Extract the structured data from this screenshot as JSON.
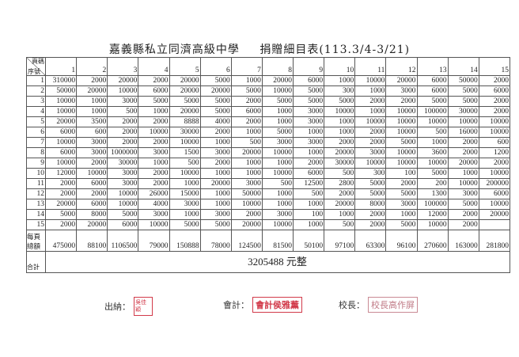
{
  "header": {
    "school": "嘉義縣私立同濟高級中學",
    "title": "捐贈細目表(113.3/4-3/21)"
  },
  "table": {
    "corner_top": "頁碼",
    "corner_bottom": "序號",
    "columns": [
      "1",
      "2",
      "3",
      "4",
      "5",
      "6",
      "7",
      "8",
      "9",
      "10",
      "11",
      "12",
      "13",
      "14",
      "15"
    ],
    "rows": [
      {
        "no": "1",
        "values": [
          "310000",
          "2000",
          "20000",
          "2000",
          "20000",
          "5000",
          "1000",
          "20000",
          "6000",
          "1000",
          "10000",
          "20000",
          "6000",
          "50000",
          "2000"
        ]
      },
      {
        "no": "2",
        "values": [
          "50000",
          "20000",
          "10000",
          "6000",
          "20000",
          "20000",
          "5000",
          "10000",
          "5000",
          "300",
          "1000",
          "3000",
          "6000",
          "5000",
          "6000"
        ]
      },
      {
        "no": "3",
        "values": [
          "10000",
          "1000",
          "3000",
          "5000",
          "5000",
          "5000",
          "2000",
          "5000",
          "5000",
          "5000",
          "2000",
          "2000",
          "5000",
          "5000",
          "2000"
        ]
      },
      {
        "no": "4",
        "values": [
          "10000",
          "1000",
          "500",
          "1000",
          "20000",
          "5000",
          "6000",
          "1000",
          "3000",
          "10000",
          "1000",
          "10000",
          "100000",
          "30000",
          "2000"
        ]
      },
      {
        "no": "5",
        "values": [
          "20000",
          "3500",
          "2000",
          "2000",
          "8888",
          "4000",
          "2000",
          "1000",
          "3000",
          "1000",
          "10000",
          "10000",
          "10000",
          "10000",
          "10000"
        ]
      },
      {
        "no": "6",
        "values": [
          "6000",
          "600",
          "2000",
          "10000",
          "30000",
          "2000",
          "1000",
          "5000",
          "1000",
          "1000",
          "2000",
          "10000",
          "500",
          "16000",
          "10000"
        ]
      },
      {
        "no": "7",
        "values": [
          "10000",
          "3000",
          "2000",
          "2000",
          "10000",
          "1000",
          "500",
          "3000",
          "3000",
          "2000",
          "2000",
          "5000",
          "1000",
          "2000",
          "600"
        ]
      },
      {
        "no": "8",
        "values": [
          "6000",
          "3000",
          "1000000",
          "3000",
          "1500",
          "3000",
          "20000",
          "10000",
          "1000",
          "20000",
          "3000",
          "10000",
          "3600",
          "2000",
          "1200"
        ]
      },
      {
        "no": "9",
        "values": [
          "10000",
          "2000",
          "30000",
          "1000",
          "500",
          "2000",
          "1000",
          "1000",
          "2000",
          "30000",
          "10000",
          "10000",
          "10000",
          "20000",
          "2000"
        ]
      },
      {
        "no": "10",
        "values": [
          "12000",
          "10000",
          "3000",
          "2000",
          "10000",
          "1000",
          "1000",
          "10000",
          "6000",
          "500",
          "300",
          "100",
          "5000",
          "1000",
          "10000"
        ]
      },
      {
        "no": "11",
        "values": [
          "2000",
          "6000",
          "3000",
          "2000",
          "1000",
          "20000",
          "3000",
          "500",
          "12500",
          "2800",
          "5000",
          "2000",
          "200",
          "10000",
          "200000"
        ]
      },
      {
        "no": "12",
        "values": [
          "2000",
          "2000",
          "10000",
          "26000",
          "15000",
          "1000",
          "50000",
          "1000",
          "500",
          "2000",
          "5000",
          "5000",
          "1300",
          "3000",
          "6000"
        ]
      },
      {
        "no": "13",
        "values": [
          "20000",
          "6000",
          "10000",
          "4000",
          "3000",
          "1000",
          "10000",
          "1000",
          "1000",
          "20000",
          "8000",
          "3000",
          "100000",
          "5000",
          "10000"
        ]
      },
      {
        "no": "14",
        "values": [
          "5000",
          "8000",
          "5000",
          "3000",
          "1000",
          "3000",
          "2000",
          "3000",
          "100",
          "1000",
          "2000",
          "1000",
          "12000",
          "2000",
          "20000"
        ]
      },
      {
        "no": "15",
        "values": [
          "2000",
          "20000",
          "6000",
          "10000",
          "5000",
          "5000",
          "20000",
          "10000",
          "1000",
          "500",
          "2000",
          "5000",
          "10000",
          "2000",
          ""
        ]
      }
    ],
    "page_total_label": "每頁總額",
    "page_totals": [
      "475000",
      "88100",
      "1106500",
      "79000",
      "150888",
      "78000",
      "124500",
      "81500",
      "50100",
      "97100",
      "63300",
      "96100",
      "270600",
      "163000",
      "281800"
    ],
    "grand_total_label": "合計",
    "grand_total": "3205488 元整"
  },
  "signatures": [
    {
      "role": "出納：",
      "stamp": "吳佳穎"
    },
    {
      "role": "會計：",
      "stamp": "會計侯雅薰"
    },
    {
      "role": "校長：",
      "stamp": "校長高作屏"
    }
  ],
  "colors": {
    "stamp": "#d23a4a",
    "grid": "#555555"
  }
}
